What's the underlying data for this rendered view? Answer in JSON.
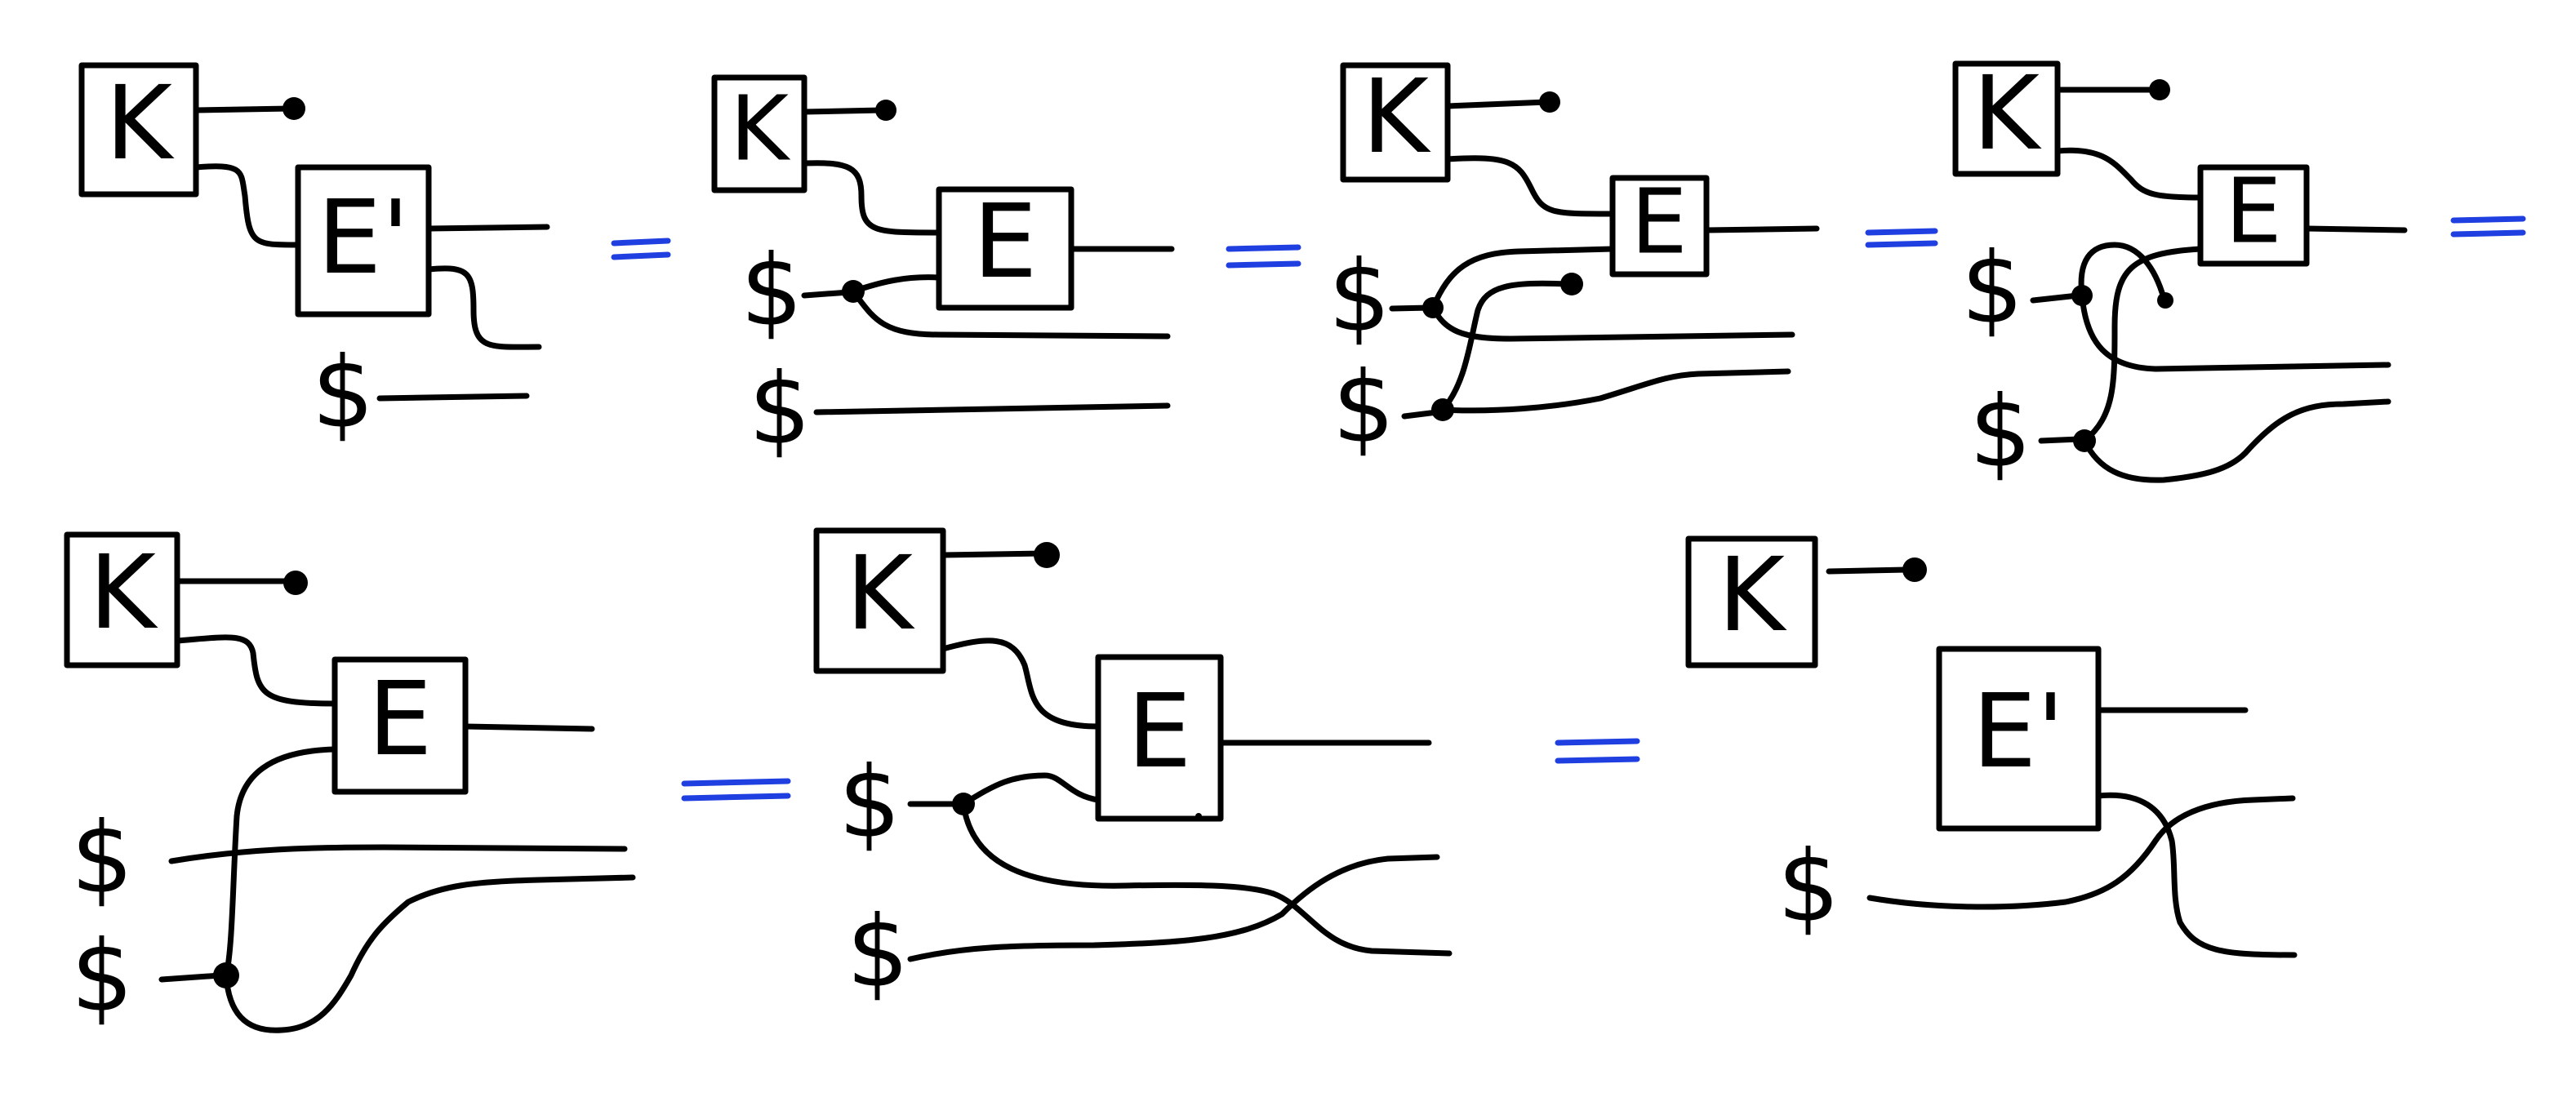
{
  "colors": {
    "ink": "#000000",
    "equals": "#1f3fe0",
    "background": "#ffffff"
  },
  "labels": {
    "key": "K",
    "enc": "E",
    "enc_prime": "E'",
    "rand": "$",
    "equals": "="
  }
}
